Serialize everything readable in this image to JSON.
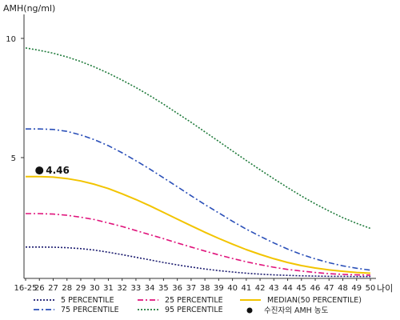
{
  "chart_data": {
    "type": "line",
    "title": "",
    "ylabel": "AMH(ng/ml)",
    "xlabel": "나이",
    "ylim": [
      0,
      11
    ],
    "y_ticks": [
      5,
      10
    ],
    "x_tick_labels": [
      "16-25",
      "26",
      "27",
      "28",
      "29",
      "30",
      "31",
      "32",
      "33",
      "34",
      "35",
      "36",
      "37",
      "38",
      "39",
      "40",
      "41",
      "42",
      "43",
      "44",
      "45",
      "46",
      "47",
      "48",
      "49",
      "50"
    ],
    "grid": false,
    "legend_placement": "bottom",
    "series": [
      {
        "name": "5 PERCENTILE",
        "color": "#1a1a6e",
        "style": "dotted",
        "values": [
          1.25,
          1.25,
          1.24,
          1.22,
          1.18,
          1.12,
          1.03,
          0.93,
          0.82,
          0.71,
          0.6,
          0.5,
          0.41,
          0.33,
          0.26,
          0.2,
          0.15,
          0.11,
          0.08,
          0.06,
          0.04,
          0.03,
          0.02,
          0.02,
          0.01,
          0.01
        ]
      },
      {
        "name": "25 PERCENTILE",
        "color": "#e0147c",
        "style": "dashdot",
        "values": [
          2.65,
          2.65,
          2.63,
          2.58,
          2.5,
          2.4,
          2.26,
          2.11,
          1.94,
          1.77,
          1.6,
          1.42,
          1.25,
          1.08,
          0.92,
          0.77,
          0.63,
          0.51,
          0.4,
          0.31,
          0.24,
          0.18,
          0.13,
          0.1,
          0.08,
          0.07
        ]
      },
      {
        "name": "75 PERCENTILE",
        "color": "#2a4fb8",
        "style": "dashdot",
        "values": [
          6.2,
          6.2,
          6.18,
          6.1,
          5.95,
          5.75,
          5.5,
          5.2,
          4.87,
          4.52,
          4.15,
          3.78,
          3.4,
          3.03,
          2.68,
          2.33,
          2.0,
          1.7,
          1.42,
          1.16,
          0.94,
          0.75,
          0.59,
          0.46,
          0.36,
          0.28
        ]
      },
      {
        "name": "95 PERCENTILE",
        "color": "#1e7a3a",
        "style": "dotted",
        "values": [
          9.6,
          9.5,
          9.38,
          9.22,
          9.03,
          8.8,
          8.54,
          8.25,
          7.94,
          7.6,
          7.24,
          6.86,
          6.48,
          6.08,
          5.68,
          5.28,
          4.88,
          4.49,
          4.11,
          3.74,
          3.39,
          3.06,
          2.76,
          2.48,
          2.24,
          2.03
        ]
      },
      {
        "name": "MEDIAN(50 PERCENTILE)",
        "color": "#f2c400",
        "style": "solid",
        "values": [
          4.2,
          4.2,
          4.18,
          4.12,
          4.02,
          3.88,
          3.7,
          3.48,
          3.24,
          2.98,
          2.7,
          2.42,
          2.14,
          1.87,
          1.61,
          1.37,
          1.14,
          0.94,
          0.76,
          0.6,
          0.47,
          0.37,
          0.29,
          0.23,
          0.18,
          0.15
        ]
      }
    ],
    "marker": {
      "name": "수진자의 AMH 농도",
      "x_index": 1,
      "y": 4.46,
      "label": "4.46",
      "color": "#111111"
    }
  }
}
